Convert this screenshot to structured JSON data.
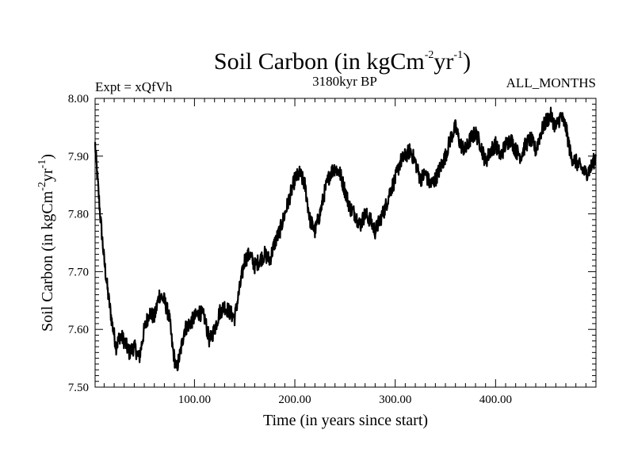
{
  "chart_data": {
    "type": "line",
    "title": "Soil Carbon (in kgCm",
    "title_sup1": "-2",
    "title_mid": "yr",
    "title_sup2": "-1",
    "title_end": ")",
    "experiment_label": "Expt = xQfVh",
    "period_label": "3180kyr BP",
    "months_label": "ALL_MONTHS",
    "xlabel": "Time (in years since start)",
    "ylabel_main": "Soil Carbon (in kgCm",
    "ylabel_sup1": "-2",
    "ylabel_mid": "yr",
    "ylabel_sup2": "-1",
    "ylabel_end": ")",
    "xlim": [
      1,
      500
    ],
    "ylim": [
      7.5,
      8.0
    ],
    "x_ticks": [
      100,
      200,
      300,
      400
    ],
    "x_tick_labels": [
      "100.00",
      "200.00",
      "300.00",
      "400.00"
    ],
    "y_ticks": [
      7.5,
      7.6,
      7.7,
      7.8,
      7.9,
      8.0
    ],
    "y_tick_labels": [
      "7.50",
      "7.60",
      "7.70",
      "7.80",
      "7.90",
      "8.00"
    ],
    "series": [
      {
        "name": "Soil Carbon",
        "color": "#000000",
        "x": [
          1,
          3,
          6,
          10,
          14,
          18,
          22,
          26,
          30,
          35,
          40,
          45,
          50,
          55,
          60,
          65,
          70,
          75,
          78,
          82,
          86,
          90,
          95,
          100,
          105,
          110,
          115,
          120,
          125,
          130,
          135,
          140,
          145,
          150,
          155,
          160,
          165,
          170,
          175,
          180,
          185,
          190,
          195,
          200,
          205,
          210,
          215,
          220,
          225,
          230,
          235,
          240,
          245,
          250,
          255,
          260,
          265,
          270,
          275,
          280,
          285,
          290,
          295,
          300,
          305,
          310,
          315,
          320,
          325,
          330,
          335,
          340,
          345,
          350,
          355,
          360,
          365,
          370,
          375,
          380,
          385,
          390,
          395,
          400,
          405,
          410,
          415,
          420,
          425,
          430,
          435,
          440,
          445,
          450,
          455,
          460,
          465,
          470,
          475,
          480,
          485,
          490,
          495,
          500
        ],
        "values": [
          7.92,
          7.87,
          7.8,
          7.72,
          7.66,
          7.61,
          7.57,
          7.59,
          7.58,
          7.56,
          7.57,
          7.55,
          7.6,
          7.63,
          7.62,
          7.66,
          7.65,
          7.62,
          7.57,
          7.53,
          7.56,
          7.6,
          7.61,
          7.62,
          7.63,
          7.62,
          7.58,
          7.6,
          7.63,
          7.64,
          7.63,
          7.62,
          7.67,
          7.72,
          7.73,
          7.71,
          7.72,
          7.73,
          7.72,
          7.75,
          7.77,
          7.8,
          7.83,
          7.86,
          7.87,
          7.85,
          7.79,
          7.77,
          7.8,
          7.84,
          7.87,
          7.88,
          7.87,
          7.84,
          7.81,
          7.8,
          7.78,
          7.8,
          7.79,
          7.77,
          7.79,
          7.81,
          7.84,
          7.86,
          7.89,
          7.9,
          7.91,
          7.89,
          7.86,
          7.87,
          7.85,
          7.86,
          7.88,
          7.9,
          7.93,
          7.95,
          7.92,
          7.91,
          7.93,
          7.94,
          7.92,
          7.89,
          7.91,
          7.92,
          7.9,
          7.92,
          7.93,
          7.91,
          7.9,
          7.92,
          7.93,
          7.91,
          7.94,
          7.96,
          7.97,
          7.95,
          7.97,
          7.95,
          7.9,
          7.89,
          7.88,
          7.87,
          7.88,
          7.9
        ]
      }
    ]
  }
}
